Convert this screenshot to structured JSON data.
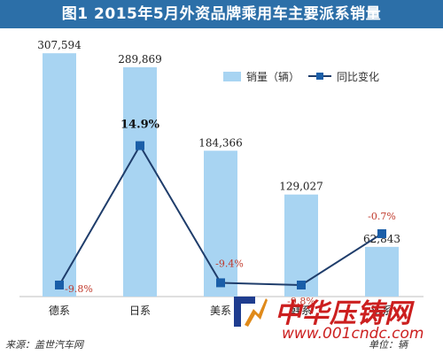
{
  "title": "图1  2015年5月外资品牌乘用车主要派系销量",
  "source": "来源：盖世汽车网",
  "unit": "单位：辆",
  "watermark": {
    "text": "中华压铸网",
    "url": "www.001cndc.com"
  },
  "colors": {
    "title_bg": "#2c6fa8",
    "bar": "#a8d4f2",
    "line": "#1f3d6b",
    "marker": "#1a5ea8",
    "pct_label": "#c0392b"
  },
  "chart_data": {
    "type": "bar",
    "categories": [
      "德系",
      "日系",
      "美系",
      "韩系",
      "法系"
    ],
    "series": [
      {
        "name": "销量（辆）",
        "type": "bar",
        "values": [
          307594,
          289869,
          184366,
          129027,
          62843
        ],
        "labels": [
          "307,594",
          "289,869",
          "184,366",
          "129,027",
          "62,843"
        ]
      },
      {
        "name": "同比变化",
        "type": "line",
        "values": [
          -9.8,
          14.9,
          -9.4,
          -9.8,
          -0.7
        ],
        "labels": [
          "-9.8%",
          "14.9%",
          "-9.4%",
          "-9.8%",
          "-0.7%"
        ]
      }
    ],
    "ylim": [
      0,
      310000
    ],
    "y2lim": [
      -20,
      20
    ],
    "grid": false,
    "legend": "top-right"
  }
}
